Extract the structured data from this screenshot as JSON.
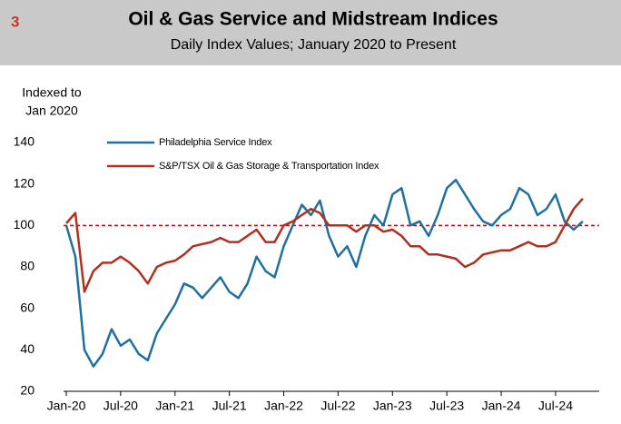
{
  "chart_data": {
    "type": "line",
    "label": "3",
    "title": "Oil & Gas Service and Midstream Indices",
    "subtitle": "Daily Index Values; January 2020 to Present",
    "ylabel": [
      "Indexed to",
      "Jan 2020"
    ],
    "categories": [
      "Jan-20",
      "Feb-20",
      "Mar-20",
      "Apr-20",
      "May-20",
      "Jun-20",
      "Jul-20",
      "Aug-20",
      "Sep-20",
      "Oct-20",
      "Nov-20",
      "Dec-20",
      "Jan-21",
      "Feb-21",
      "Mar-21",
      "Apr-21",
      "May-21",
      "Jun-21",
      "Jul-21",
      "Aug-21",
      "Sep-21",
      "Oct-21",
      "Nov-21",
      "Dec-21",
      "Jan-22",
      "Feb-22",
      "Mar-22",
      "Apr-22",
      "May-22",
      "Jun-22",
      "Jul-22",
      "Aug-22",
      "Sep-22",
      "Oct-22",
      "Nov-22",
      "Dec-22",
      "Jan-23",
      "Feb-23",
      "Mar-23",
      "Apr-23",
      "May-23",
      "Jun-23",
      "Jul-23",
      "Aug-23",
      "Sep-23",
      "Oct-23",
      "Nov-23",
      "Dec-23",
      "Jan-24",
      "Feb-24",
      "Mar-24",
      "Apr-24",
      "May-24",
      "Jun-24",
      "Jul-24",
      "Aug-24",
      "Sep-24",
      "Oct-24"
    ],
    "xticks": [
      "Jan-20",
      "Jul-20",
      "Jan-21",
      "Jul-21",
      "Jan-22",
      "Jul-22",
      "Jan-23",
      "Jul-23",
      "Jan-24",
      "Jul-24"
    ],
    "series": [
      {
        "name": "Philadelphia Service Index",
        "color": "#1f6fa3",
        "values": [
          100,
          85,
          40,
          32,
          38,
          50,
          42,
          45,
          38,
          35,
          48,
          55,
          62,
          72,
          70,
          65,
          70,
          75,
          68,
          65,
          72,
          85,
          78,
          75,
          90,
          100,
          110,
          105,
          112,
          95,
          85,
          90,
          80,
          95,
          105,
          100,
          115,
          118,
          100,
          102,
          95,
          105,
          118,
          122,
          115,
          108,
          102,
          100,
          105,
          108,
          118,
          115,
          105,
          108,
          115,
          102,
          98,
          102
        ]
      },
      {
        "name": "S&P/TSX Oil & Gas Storage & Transportation Index",
        "color": "#b03020",
        "values": [
          101,
          106,
          68,
          78,
          82,
          82,
          85,
          82,
          78,
          72,
          80,
          82,
          83,
          86,
          90,
          91,
          92,
          94,
          92,
          92,
          95,
          98,
          92,
          92,
          100,
          102,
          105,
          108,
          106,
          100,
          100,
          100,
          97,
          100,
          100,
          97,
          98,
          95,
          90,
          90,
          86,
          86,
          85,
          84,
          80,
          82,
          86,
          87,
          88,
          88,
          90,
          92,
          90,
          90,
          92,
          100,
          108,
          113
        ]
      }
    ],
    "ylim": [
      20,
      140
    ],
    "yticks": [
      20,
      40,
      60,
      80,
      100,
      120,
      140
    ],
    "reference_line": 100,
    "reference_color": "#cc0000"
  }
}
